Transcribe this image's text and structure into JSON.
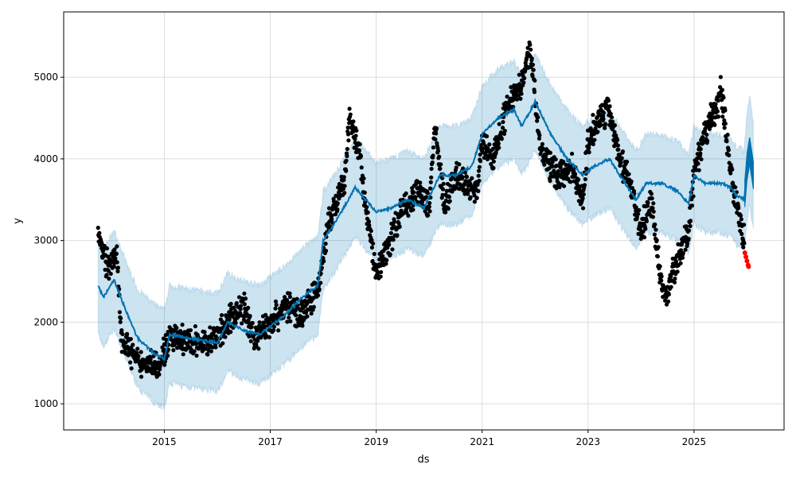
{
  "chart_data": {
    "type": "line",
    "title": "",
    "xlabel": "ds",
    "ylabel": "y",
    "xlim": [
      2013.1,
      2026.7
    ],
    "ylim": [
      680,
      5800
    ],
    "grid": true,
    "x_ticks": [
      2015,
      2017,
      2019,
      2021,
      2023,
      2025
    ],
    "x_tick_labels": [
      "2015",
      "2017",
      "2019",
      "2021",
      "2023",
      "2025"
    ],
    "y_ticks": [
      1000,
      2000,
      3000,
      4000,
      5000
    ],
    "y_tick_labels": [
      "1000",
      "2000",
      "3000",
      "4000",
      "5000"
    ],
    "colors": {
      "forecast": "#0072B2",
      "band": "#0072B2",
      "observed": "#000000",
      "test": "#FF0000"
    },
    "forecast_yhat": [
      [
        2013.75,
        2450
      ],
      [
        2013.85,
        2300
      ],
      [
        2014.05,
        2520
      ],
      [
        2014.3,
        2100
      ],
      [
        2014.5,
        1800
      ],
      [
        2014.8,
        1620
      ],
      [
        2015.0,
        1550
      ],
      [
        2015.1,
        1850
      ],
      [
        2015.5,
        1800
      ],
      [
        2016.0,
        1750
      ],
      [
        2016.2,
        2000
      ],
      [
        2016.5,
        1900
      ],
      [
        2016.8,
        1850
      ],
      [
        2017.0,
        1950
      ],
      [
        2017.3,
        2100
      ],
      [
        2017.6,
        2300
      ],
      [
        2017.9,
        2450
      ],
      [
        2018.0,
        3000
      ],
      [
        2018.3,
        3300
      ],
      [
        2018.6,
        3650
      ],
      [
        2018.8,
        3500
      ],
      [
        2019.0,
        3350
      ],
      [
        2019.3,
        3400
      ],
      [
        2019.6,
        3500
      ],
      [
        2019.9,
        3400
      ],
      [
        2020.2,
        3800
      ],
      [
        2020.5,
        3800
      ],
      [
        2020.8,
        3900
      ],
      [
        2021.0,
        4300
      ],
      [
        2021.3,
        4500
      ],
      [
        2021.6,
        4600
      ],
      [
        2021.75,
        4400
      ],
      [
        2022.0,
        4700
      ],
      [
        2022.3,
        4300
      ],
      [
        2022.6,
        4000
      ],
      [
        2022.9,
        3800
      ],
      [
        2023.1,
        3900
      ],
      [
        2023.4,
        4000
      ],
      [
        2023.6,
        3800
      ],
      [
        2023.9,
        3500
      ],
      [
        2024.1,
        3700
      ],
      [
        2024.4,
        3700
      ],
      [
        2024.7,
        3600
      ],
      [
        2024.9,
        3450
      ],
      [
        2025.0,
        3800
      ],
      [
        2025.2,
        3700
      ],
      [
        2025.5,
        3700
      ],
      [
        2025.7,
        3650
      ],
      [
        2025.8,
        3550
      ],
      [
        2025.95,
        3500
      ],
      [
        2026.0,
        3900
      ],
      [
        2026.05,
        4100
      ],
      [
        2026.12,
        3800
      ]
    ],
    "uncertainty_halfwidth": 600,
    "observed": [
      [
        2013.75,
        3100
      ],
      [
        2013.9,
        2700
      ],
      [
        2014.1,
        2800
      ],
      [
        2014.2,
        1800
      ],
      [
        2014.5,
        1500
      ],
      [
        2014.9,
        1500
      ],
      [
        2015.1,
        1800
      ],
      [
        2015.5,
        1750
      ],
      [
        2015.9,
        1750
      ],
      [
        2016.2,
        2000
      ],
      [
        2016.5,
        2200
      ],
      [
        2016.7,
        1800
      ],
      [
        2017.0,
        2000
      ],
      [
        2017.3,
        2200
      ],
      [
        2017.6,
        2100
      ],
      [
        2017.9,
        2400
      ],
      [
        2018.1,
        3200
      ],
      [
        2018.4,
        3700
      ],
      [
        2018.5,
        4500
      ],
      [
        2018.7,
        4000
      ],
      [
        2018.8,
        3400
      ],
      [
        2019.0,
        2600
      ],
      [
        2019.2,
        2900
      ],
      [
        2019.5,
        3400
      ],
      [
        2019.8,
        3600
      ],
      [
        2020.0,
        3400
      ],
      [
        2020.1,
        4400
      ],
      [
        2020.3,
        3400
      ],
      [
        2020.5,
        3800
      ],
      [
        2020.9,
        3600
      ],
      [
        2021.0,
        4200
      ],
      [
        2021.2,
        4000
      ],
      [
        2021.5,
        4700
      ],
      [
        2021.8,
        5000
      ],
      [
        2021.9,
        5400
      ],
      [
        2022.1,
        4100
      ],
      [
        2022.4,
        3800
      ],
      [
        2022.7,
        3900
      ],
      [
        2022.9,
        3500
      ],
      [
        2023.0,
        4200
      ],
      [
        2023.2,
        4500
      ],
      [
        2023.4,
        4600
      ],
      [
        2023.6,
        4000
      ],
      [
        2023.8,
        3700
      ],
      [
        2024.0,
        3100
      ],
      [
        2024.2,
        3500
      ],
      [
        2024.35,
        2600
      ],
      [
        2024.45,
        2300
      ],
      [
        2024.7,
        2800
      ],
      [
        2024.9,
        3100
      ],
      [
        2025.0,
        3800
      ],
      [
        2025.3,
        4500
      ],
      [
        2025.45,
        4600
      ],
      [
        2025.5,
        4900
      ],
      [
        2025.7,
        3800
      ],
      [
        2025.85,
        3300
      ],
      [
        2025.95,
        3000
      ]
    ],
    "test_points": [
      [
        2025.96,
        2850
      ],
      [
        2025.98,
        2800
      ],
      [
        2026.0,
        2750
      ],
      [
        2026.02,
        2700
      ],
      [
        2026.03,
        2680
      ]
    ]
  }
}
